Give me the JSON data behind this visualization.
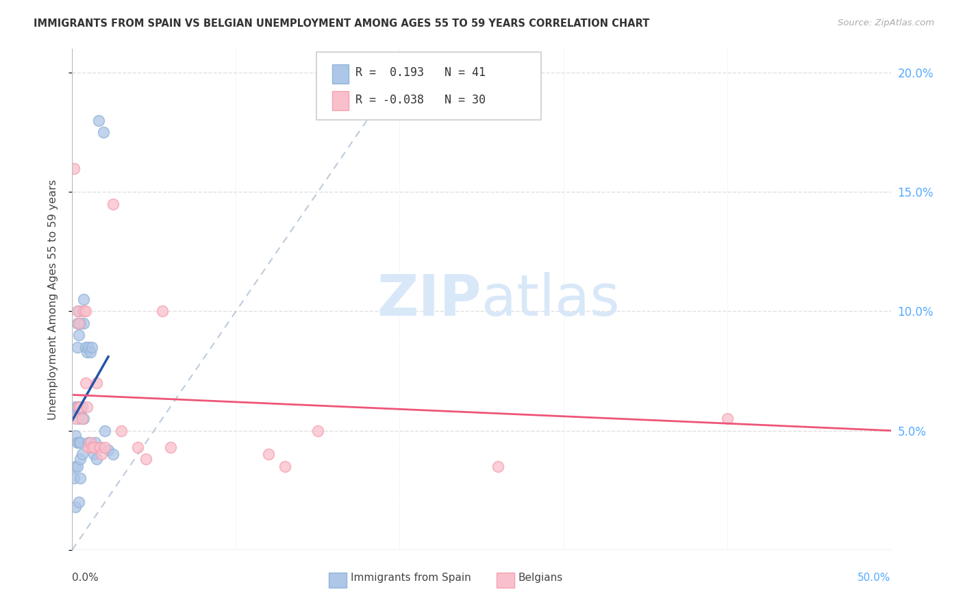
{
  "title": "IMMIGRANTS FROM SPAIN VS BELGIAN UNEMPLOYMENT AMONG AGES 55 TO 59 YEARS CORRELATION CHART",
  "source": "Source: ZipAtlas.com",
  "ylabel": "Unemployment Among Ages 55 to 59 years",
  "xlim": [
    0.0,
    0.5
  ],
  "ylim": [
    0.0,
    0.21
  ],
  "ytick_vals": [
    0.0,
    0.05,
    0.1,
    0.15,
    0.2
  ],
  "ytick_labels": [
    "",
    "5.0%",
    "10.0%",
    "15.0%",
    "20.0%"
  ],
  "xtick_vals": [
    0.0,
    0.1,
    0.2,
    0.3,
    0.4,
    0.5
  ],
  "legend_R1": " 0.193",
  "legend_N1": "41",
  "legend_R2": "-0.038",
  "legend_N2": "30",
  "blue_color": "#92B4D7",
  "pink_color": "#F4A0B0",
  "blue_face_color": "#AEC6E8",
  "pink_face_color": "#F9C0CC",
  "blue_line_color": "#2255AA",
  "pink_line_color": "#EE5577",
  "diag_color": "#BBCCDD",
  "watermark_color": "#D8E8F8",
  "grid_color": "#E0E0E0",
  "blue_x": [
    0.001,
    0.001,
    0.002,
    0.002,
    0.002,
    0.002,
    0.003,
    0.003,
    0.003,
    0.003,
    0.003,
    0.004,
    0.004,
    0.004,
    0.004,
    0.004,
    0.005,
    0.005,
    0.005,
    0.005,
    0.005,
    0.006,
    0.006,
    0.007,
    0.007,
    0.007,
    0.008,
    0.009,
    0.01,
    0.01,
    0.011,
    0.012,
    0.013,
    0.014,
    0.015,
    0.016,
    0.017,
    0.019,
    0.02,
    0.022,
    0.025
  ],
  "blue_y": [
    0.058,
    0.03,
    0.06,
    0.048,
    0.035,
    0.018,
    0.095,
    0.085,
    0.06,
    0.045,
    0.035,
    0.1,
    0.09,
    0.055,
    0.045,
    0.02,
    0.095,
    0.058,
    0.045,
    0.038,
    0.03,
    0.06,
    0.04,
    0.105,
    0.095,
    0.055,
    0.085,
    0.083,
    0.085,
    0.045,
    0.083,
    0.085,
    0.04,
    0.045,
    0.038,
    0.18,
    0.043,
    0.175,
    0.05,
    0.042,
    0.04
  ],
  "pink_x": [
    0.001,
    0.002,
    0.003,
    0.004,
    0.004,
    0.005,
    0.006,
    0.007,
    0.008,
    0.008,
    0.009,
    0.01,
    0.011,
    0.012,
    0.013,
    0.015,
    0.017,
    0.018,
    0.02,
    0.025,
    0.03,
    0.04,
    0.045,
    0.055,
    0.06,
    0.12,
    0.13,
    0.15,
    0.26,
    0.4
  ],
  "pink_y": [
    0.16,
    0.055,
    0.1,
    0.06,
    0.095,
    0.06,
    0.055,
    0.1,
    0.1,
    0.07,
    0.06,
    0.043,
    0.045,
    0.043,
    0.043,
    0.07,
    0.043,
    0.04,
    0.043,
    0.145,
    0.05,
    0.043,
    0.038,
    0.1,
    0.043,
    0.04,
    0.035,
    0.05,
    0.035,
    0.055
  ],
  "blue_trend_x": [
    0.0,
    0.022
  ],
  "pink_trend_x": [
    0.0,
    0.5
  ]
}
